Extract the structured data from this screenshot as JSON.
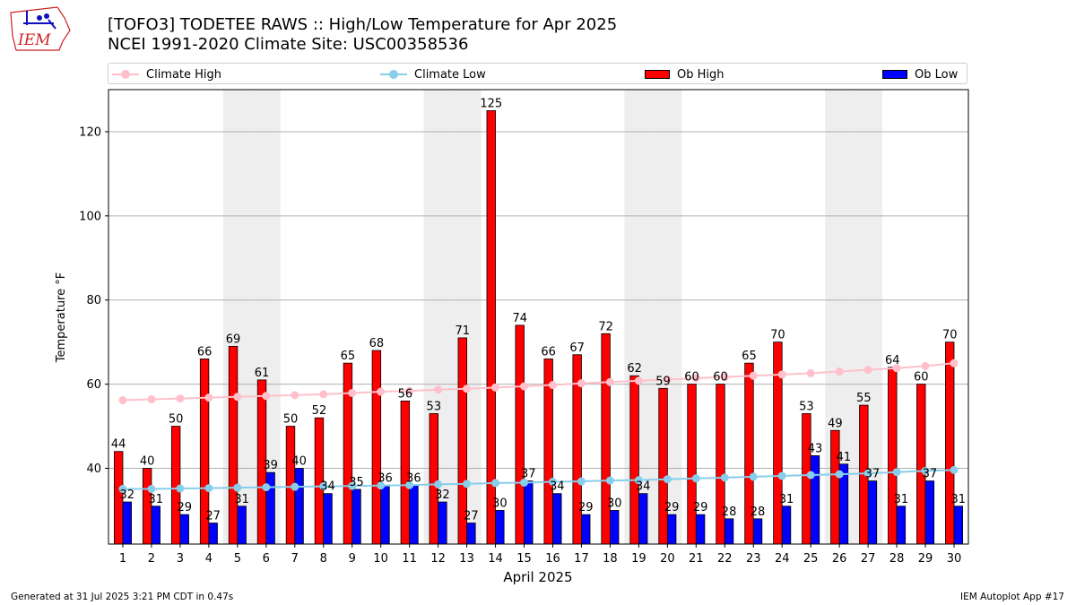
{
  "header": {
    "title_line1": "[TOFO3] TODETEE RAWS :: High/Low Temperature for Apr 2025",
    "title_line2": "NCEI 1991-2020 Climate Site: USC00358536"
  },
  "logo": {
    "text": "IEM"
  },
  "footer": {
    "left": "Generated at 31 Jul 2025 3:21 PM CDT in 0.47s",
    "right": "IEM Autoplot App #17"
  },
  "colors": {
    "ob_high": "#ff0000",
    "ob_low": "#0000ff",
    "climate_high": "#ffc0cb",
    "climate_low": "#87ceeb",
    "weekend_band": "#eeeeee",
    "grid": "#b0b0b0"
  },
  "chart_data": {
    "type": "bar",
    "xlabel": "April 2025",
    "ylabel": "Temperature °F",
    "ylim": [
      22,
      130
    ],
    "yticks": [
      40,
      60,
      80,
      100,
      120
    ],
    "grid": "horizontal",
    "legend_position": "top",
    "categories": [
      "1",
      "2",
      "3",
      "4",
      "5",
      "6",
      "7",
      "8",
      "9",
      "10",
      "11",
      "12",
      "13",
      "14",
      "15",
      "16",
      "17",
      "18",
      "19",
      "20",
      "21",
      "22",
      "23",
      "24",
      "25",
      "26",
      "27",
      "28",
      "29",
      "30"
    ],
    "shaded_days": [
      5,
      6,
      12,
      13,
      19,
      20,
      26,
      27
    ],
    "series": [
      {
        "name": "Ob High",
        "kind": "bar",
        "color": "#ff0000",
        "values": [
          44,
          40,
          50,
          66,
          69,
          61,
          50,
          52,
          65,
          68,
          56,
          53,
          71,
          125,
          74,
          66,
          67,
          72,
          62,
          59,
          60,
          60,
          65,
          70,
          53,
          49,
          55,
          64,
          60,
          70
        ]
      },
      {
        "name": "Ob Low",
        "kind": "bar",
        "color": "#0000ff",
        "values": [
          32,
          31,
          29,
          27,
          31,
          39,
          40,
          34,
          35,
          36,
          36,
          32,
          27,
          30,
          37,
          34,
          29,
          30,
          34,
          29,
          29,
          28,
          28,
          31,
          43,
          41,
          37,
          31,
          37,
          31
        ]
      },
      {
        "name": "Climate High",
        "kind": "line",
        "color": "#ffc0cb",
        "values": [
          56.2,
          56.4,
          56.6,
          56.8,
          57.0,
          57.2,
          57.4,
          57.6,
          57.9,
          58.2,
          58.4,
          58.7,
          58.9,
          59.2,
          59.5,
          59.8,
          60.2,
          60.5,
          60.8,
          61.1,
          61.4,
          61.7,
          62.0,
          62.3,
          62.6,
          63.0,
          63.4,
          63.8,
          64.3,
          65.0
        ]
      },
      {
        "name": "Climate Low",
        "kind": "line",
        "color": "#87ceeb",
        "values": [
          35.1,
          35.1,
          35.2,
          35.3,
          35.4,
          35.5,
          35.6,
          35.7,
          35.8,
          35.9,
          36.0,
          36.2,
          36.3,
          36.5,
          36.6,
          36.8,
          36.9,
          37.1,
          37.2,
          37.4,
          37.6,
          37.8,
          38.0,
          38.2,
          38.4,
          38.6,
          38.8,
          39.1,
          39.4,
          39.6
        ]
      }
    ]
  }
}
